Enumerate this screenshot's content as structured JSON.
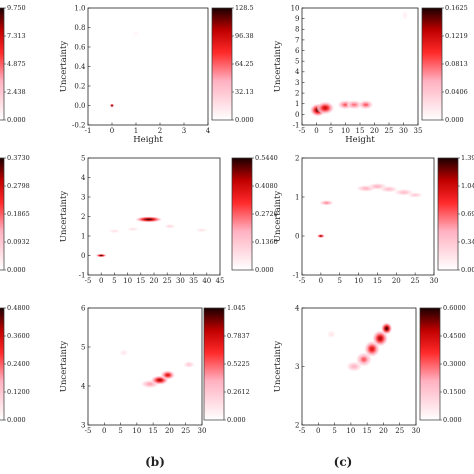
{
  "panel_labels": [
    "(b)",
    "(c)"
  ],
  "colormap": {
    "low": "#ffffff",
    "high": "#1a0000",
    "mid": "#ff0000"
  },
  "chart_data": [
    {
      "type": "heatmap",
      "id": "r1c1",
      "xlabel": "Height",
      "ylabel": "Uncertainty",
      "xlim": [
        -1,
        4
      ],
      "ylim": [
        -0.2,
        1.0
      ],
      "xticks": [
        "-1",
        "0",
        "1",
        "2",
        "3",
        "4"
      ],
      "yticks": [
        "-0.2",
        "0.0",
        "0.2",
        "0.4",
        "0.6",
        "0.8",
        "1.0"
      ],
      "colorbar": {
        "min": 0,
        "max": 128.5,
        "labels": [
          "0.000",
          "32.13",
          "64.25",
          "96.38",
          "128.5"
        ]
      },
      "blobs": [
        {
          "x": 0,
          "y": 0,
          "sx": 0.05,
          "sy": 0.012,
          "peak": 1.0
        },
        {
          "x": 1.0,
          "y": 0.74,
          "sx": 0.1,
          "sy": 0.02,
          "peak": 0.04
        }
      ]
    },
    {
      "type": "heatmap",
      "id": "r1c2",
      "xlabel": "Height",
      "ylabel": "Uncertainty",
      "xlim": [
        -5,
        35
      ],
      "ylim": [
        -1,
        10
      ],
      "xticks": [
        "-5",
        "0",
        "5",
        "10",
        "15",
        "20",
        "25",
        "30",
        "35"
      ],
      "yticks": [
        "-1",
        "0",
        "1",
        "2",
        "3",
        "4",
        "5",
        "6",
        "7",
        "8",
        "9",
        "10"
      ],
      "colorbar": {
        "min": 0,
        "max": 0.1625,
        "labels": [
          "0.000",
          "0.0406",
          "0.0813",
          "0.1219",
          "0.1625"
        ]
      },
      "blobs": [
        {
          "x": 0.5,
          "y": 0.4,
          "sx": 1.6,
          "sy": 0.35,
          "peak": 0.95
        },
        {
          "x": 3,
          "y": 0.6,
          "sx": 1.8,
          "sy": 0.35,
          "peak": 0.8
        },
        {
          "x": 10,
          "y": 0.9,
          "sx": 1.6,
          "sy": 0.25,
          "peak": 0.55
        },
        {
          "x": 13,
          "y": 0.9,
          "sx": 1.6,
          "sy": 0.25,
          "peak": 0.5
        },
        {
          "x": 17,
          "y": 0.9,
          "sx": 1.5,
          "sy": 0.25,
          "peak": 0.55
        },
        {
          "x": 30.5,
          "y": 9.3,
          "sx": 0.7,
          "sy": 0.25,
          "peak": 0.08
        }
      ]
    },
    {
      "type": "heatmap",
      "id": "r2c1",
      "xlabel": "",
      "ylabel": "Uncertainty",
      "xlim": [
        -5,
        45
      ],
      "ylim": [
        -1,
        5
      ],
      "xticks": [
        "-5",
        "0",
        "5",
        "10",
        "15",
        "20",
        "25",
        "30",
        "35",
        "40",
        "45"
      ],
      "yticks": [
        "-1",
        "0",
        "1",
        "2",
        "3",
        "4",
        "5"
      ],
      "colorbar": {
        "min": 0,
        "max": 0.544,
        "labels": [
          "0.000",
          "0.1360",
          "0.2720",
          "0.4080",
          "0.5440"
        ]
      },
      "blobs": [
        {
          "x": 0,
          "y": 0,
          "sx": 1.2,
          "sy": 0.05,
          "peak": 1.0
        },
        {
          "x": 18,
          "y": 1.85,
          "sx": 3.0,
          "sy": 0.09,
          "peak": 1.0
        },
        {
          "x": 5,
          "y": 1.25,
          "sx": 1.3,
          "sy": 0.06,
          "peak": 0.15
        },
        {
          "x": 12,
          "y": 1.35,
          "sx": 1.3,
          "sy": 0.06,
          "peak": 0.15
        },
        {
          "x": 26,
          "y": 1.5,
          "sx": 1.3,
          "sy": 0.06,
          "peak": 0.2
        },
        {
          "x": 38,
          "y": 1.3,
          "sx": 1.3,
          "sy": 0.06,
          "peak": 0.15
        }
      ]
    },
    {
      "type": "heatmap",
      "id": "r2c2",
      "xlabel": "",
      "ylabel": "Uncertainty",
      "xlim": [
        -5,
        30
      ],
      "ylim": [
        -1,
        2
      ],
      "xticks": [
        "-5",
        "0",
        "5",
        "10",
        "15",
        "20",
        "25",
        "30"
      ],
      "yticks": [
        "-1",
        "0",
        "1",
        "2"
      ],
      "colorbar": {
        "min": 0,
        "max": 1.395,
        "labels": [
          "0.000",
          "0.3488",
          "0.6975",
          "1.046",
          "1.395"
        ]
      },
      "blobs": [
        {
          "x": 0,
          "y": 0,
          "sx": 0.6,
          "sy": 0.03,
          "peak": 0.9
        },
        {
          "x": 1.5,
          "y": 0.85,
          "sx": 1.1,
          "sy": 0.04,
          "peak": 0.45
        },
        {
          "x": 12,
          "y": 1.22,
          "sx": 1.5,
          "sy": 0.05,
          "peak": 0.35
        },
        {
          "x": 15,
          "y": 1.27,
          "sx": 1.5,
          "sy": 0.05,
          "peak": 0.35
        },
        {
          "x": 18,
          "y": 1.2,
          "sx": 1.4,
          "sy": 0.05,
          "peak": 0.3
        },
        {
          "x": 22,
          "y": 1.12,
          "sx": 1.5,
          "sy": 0.05,
          "peak": 0.3
        },
        {
          "x": 25,
          "y": 1.05,
          "sx": 1.2,
          "sy": 0.04,
          "peak": 0.25
        }
      ]
    },
    {
      "type": "heatmap",
      "id": "r3c1",
      "xlabel": "",
      "ylabel": "Uncertainty",
      "xlim": [
        -5,
        30
      ],
      "ylim": [
        3,
        6
      ],
      "xticks": [
        "-5",
        "0",
        "5",
        "10",
        "15",
        "20",
        "25",
        "30"
      ],
      "yticks": [
        "3",
        "4",
        "5",
        "6"
      ],
      "colorbar": {
        "min": 0,
        "max": 1.045,
        "labels": [
          "0.000",
          "0.2612",
          "0.5225",
          "0.7837",
          "1.045"
        ]
      },
      "blobs": [
        {
          "x": 14,
          "y": 4.05,
          "sx": 1.6,
          "sy": 0.06,
          "peak": 0.4
        },
        {
          "x": 17,
          "y": 4.15,
          "sx": 1.6,
          "sy": 0.07,
          "peak": 0.85
        },
        {
          "x": 19.5,
          "y": 4.28,
          "sx": 1.3,
          "sy": 0.07,
          "peak": 0.75
        },
        {
          "x": 26,
          "y": 4.55,
          "sx": 1.0,
          "sy": 0.05,
          "peak": 0.25
        },
        {
          "x": 6,
          "y": 4.85,
          "sx": 0.8,
          "sy": 0.05,
          "peak": 0.12
        }
      ]
    },
    {
      "type": "heatmap",
      "id": "r3c2",
      "xlabel": "",
      "ylabel": "Uncertainty",
      "xlim": [
        -5,
        30
      ],
      "ylim": [
        2,
        4
      ],
      "xticks": [
        "-5",
        "0",
        "5",
        "10",
        "15",
        "20",
        "25",
        "30"
      ],
      "yticks": [
        "2",
        "3",
        "4"
      ],
      "colorbar": {
        "min": 0,
        "max": 0.6,
        "labels": [
          "0.000",
          "0.1500",
          "0.3000",
          "0.4500",
          "0.6000"
        ]
      },
      "blobs": [
        {
          "x": 11,
          "y": 3.0,
          "sx": 1.4,
          "sy": 0.05,
          "peak": 0.35
        },
        {
          "x": 14,
          "y": 3.12,
          "sx": 1.4,
          "sy": 0.07,
          "peak": 0.55
        },
        {
          "x": 16.5,
          "y": 3.3,
          "sx": 1.4,
          "sy": 0.08,
          "peak": 0.75
        },
        {
          "x": 19,
          "y": 3.48,
          "sx": 1.4,
          "sy": 0.08,
          "peak": 0.85
        },
        {
          "x": 21,
          "y": 3.65,
          "sx": 1.0,
          "sy": 0.06,
          "peak": 1.0
        },
        {
          "x": 4,
          "y": 3.55,
          "sx": 0.8,
          "sy": 0.04,
          "peak": 0.12
        }
      ]
    },
    {
      "type": "colorbar",
      "id": "left-r1",
      "labels": [
        "0.000",
        "2.438",
        "4.875",
        "7.313",
        "9.750"
      ]
    },
    {
      "type": "colorbar",
      "id": "left-r2",
      "labels": [
        "0.000",
        "0.0932",
        "0.1865",
        "0.2798",
        "0.3730"
      ]
    },
    {
      "type": "colorbar",
      "id": "left-r3",
      "labels": [
        "0.000",
        "0.1200",
        "0.2400",
        "0.3600",
        "0.4800"
      ]
    }
  ]
}
